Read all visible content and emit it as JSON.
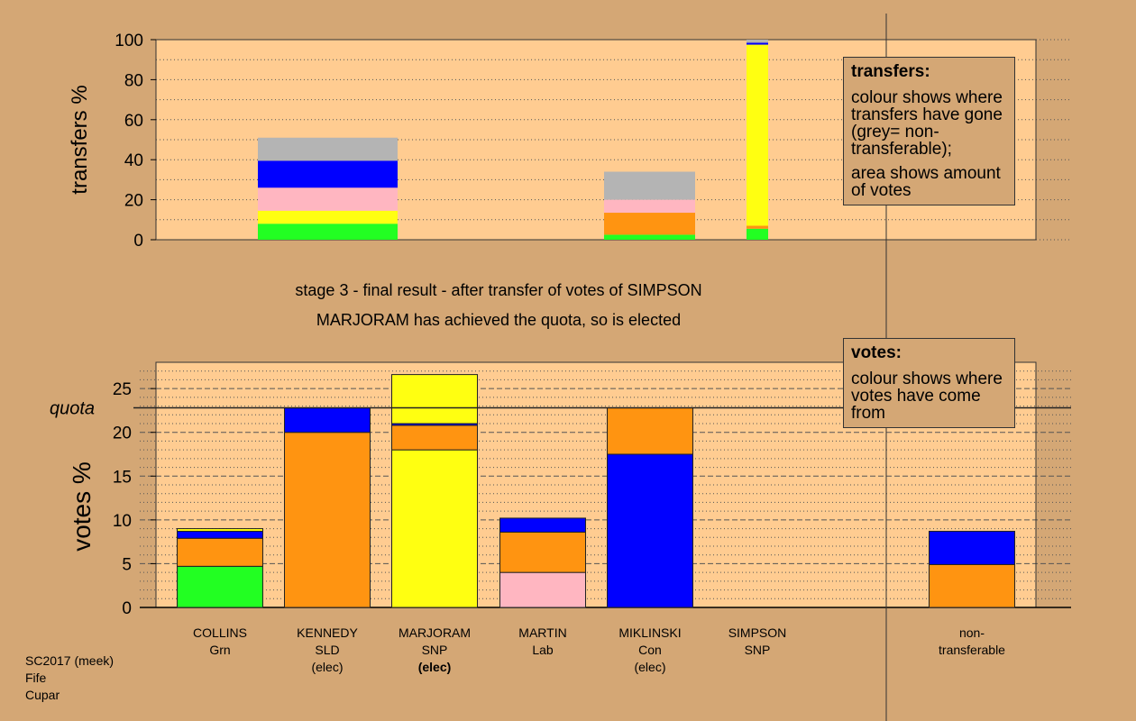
{
  "captions": {
    "stage": "stage 3 - final result - after transfer of votes of SIMPSON",
    "result": "MARJORAM has achieved the quota, so is elected"
  },
  "legend_transfers": {
    "title": "transfers:",
    "line1": "colour shows where transfers have gone (grey= non-transferable);",
    "line2": "area shows amount of votes"
  },
  "legend_votes": {
    "title": "votes:",
    "line1": "colour shows where votes have come from"
  },
  "footer": {
    "line1": "SC2017 (meek)",
    "line2": "Fife",
    "line3": "Cupar"
  },
  "colors": {
    "background": "#d4a775",
    "plot_bg": "#ffcc91",
    "Grn": "#22ff22",
    "SLD": "#ff9411",
    "SNP": "#ffff11",
    "Lab": "#ffb6c1",
    "Con": "#0000ff",
    "non_transferable": "#b4b4b4"
  },
  "chart_data": [
    {
      "type": "bar",
      "stacked": true,
      "ylabel": "transfers %",
      "ylim": [
        0,
        100
      ],
      "yticks": [
        0,
        20,
        40,
        60,
        80,
        100
      ],
      "grid": "dotted horizontal",
      "legend": "right",
      "bars": [
        {
          "name": "KENNEDY",
          "segments": [
            {
              "party": "Grn",
              "value": 8
            },
            {
              "party": "SNP",
              "value": 6.5
            },
            {
              "party": "Lab",
              "value": 11.5
            },
            {
              "party": "Con",
              "value": 13.5
            },
            {
              "party": "non_transferable",
              "value": 11.5
            }
          ]
        },
        {
          "name": "MIKLINSKI",
          "segments": [
            {
              "party": "Grn",
              "value": 2.5
            },
            {
              "party": "SLD",
              "value": 11
            },
            {
              "party": "Lab",
              "value": 6.5
            },
            {
              "party": "non_transferable",
              "value": 14
            }
          ]
        },
        {
          "name": "SIMPSON",
          "segments": [
            {
              "party": "Grn",
              "value": 5.5
            },
            {
              "party": "SLD",
              "value": 1.5
            },
            {
              "party": "SNP",
              "value": 90.5
            },
            {
              "party": "Con",
              "value": 1
            },
            {
              "party": "non_transferable",
              "value": 1.5
            }
          ]
        }
      ]
    },
    {
      "type": "bar",
      "stacked": true,
      "ylabel": "votes %",
      "ylim": [
        0,
        28
      ],
      "yticks": [
        0,
        5,
        10,
        15,
        20,
        25
      ],
      "quota": 22.8,
      "quota_label": "quota",
      "grid": "dotted/dashed horizontal",
      "legend": "top-right",
      "categories": [
        {
          "name": "COLLINS",
          "party": "Grn",
          "status": ""
        },
        {
          "name": "KENNEDY",
          "party": "SLD",
          "status": "(elec)"
        },
        {
          "name": "MARJORAM",
          "party": "SNP",
          "status": "(elec)"
        },
        {
          "name": "MARTIN",
          "party": "Lab",
          "status": ""
        },
        {
          "name": "MIKLINSKI",
          "party": "Con",
          "status": "(elec)"
        },
        {
          "name": "SIMPSON",
          "party": "SNP",
          "status": ""
        },
        {
          "name": "non-",
          "party": "transferable",
          "status": ""
        }
      ],
      "stacks": [
        [
          {
            "party": "Grn",
            "value": 4.7
          },
          {
            "party": "SLD",
            "value": 3.2
          },
          {
            "party": "Con",
            "value": 0.8
          },
          {
            "party": "SNP",
            "value": 0.3
          }
        ],
        [
          {
            "party": "SLD",
            "value": 20.0
          },
          {
            "party": "Con",
            "value": 2.8
          }
        ],
        [
          {
            "party": "SNP",
            "value": 18.0
          },
          {
            "party": "SLD",
            "value": 2.8
          },
          {
            "party": "Con",
            "value": 0.2
          },
          {
            "party": "SNP",
            "value": 5.6
          }
        ],
        [
          {
            "party": "Lab",
            "value": 4.0
          },
          {
            "party": "SLD",
            "value": 4.6
          },
          {
            "party": "Con",
            "value": 1.6
          }
        ],
        [
          {
            "party": "Con",
            "value": 17.5
          },
          {
            "party": "SLD",
            "value": 5.3
          }
        ],
        [],
        [
          {
            "party": "SLD",
            "value": 4.9
          },
          {
            "party": "Con",
            "value": 3.8
          }
        ]
      ]
    }
  ]
}
